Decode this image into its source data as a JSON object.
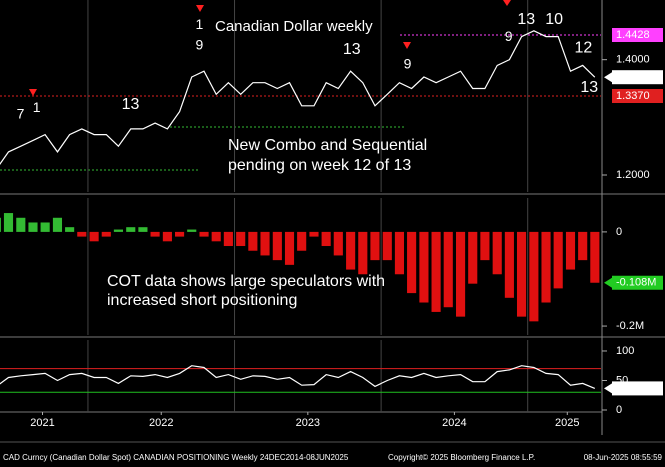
{
  "chart_data": [
    {
      "type": "line",
      "title": "Canadian Dollar weekly",
      "annotation": [
        "New Combo and Sequential",
        "pending on week 12 of 13"
      ],
      "color": "#ffffff",
      "x": [
        2021.375,
        2021.458,
        2021.542,
        2021.625,
        2021.708,
        2021.792,
        2021.875,
        2021.958,
        2022.042,
        2022.125,
        2022.208,
        2022.292,
        2022.375,
        2022.458,
        2022.542,
        2022.625,
        2022.708,
        2022.792,
        2022.875,
        2022.958,
        2023.042,
        2023.125,
        2023.208,
        2023.292,
        2023.375,
        2023.458,
        2023.542,
        2023.625,
        2023.708,
        2023.792,
        2023.875,
        2023.958,
        2024.042,
        2024.125,
        2024.208,
        2024.292,
        2024.375,
        2024.458,
        2024.542,
        2024.625,
        2024.708,
        2024.792,
        2024.875,
        2024.958,
        2025.042,
        2025.125,
        2025.208,
        2025.292,
        2025.375,
        2025.458
      ],
      "values": [
        1.21,
        1.24,
        1.25,
        1.26,
        1.27,
        1.24,
        1.27,
        1.28,
        1.27,
        1.27,
        1.25,
        1.28,
        1.28,
        1.29,
        1.28,
        1.31,
        1.37,
        1.38,
        1.34,
        1.36,
        1.34,
        1.36,
        1.36,
        1.35,
        1.36,
        1.32,
        1.32,
        1.36,
        1.35,
        1.38,
        1.36,
        1.32,
        1.34,
        1.36,
        1.35,
        1.37,
        1.36,
        1.37,
        1.38,
        1.35,
        1.35,
        1.39,
        1.4,
        1.44,
        1.45,
        1.44,
        1.44,
        1.38,
        1.39,
        1.3696
      ],
      "xlim": [
        2021.4,
        2025.5
      ],
      "ylim": [
        1.1705,
        1.5035
      ],
      "yticks": [
        {
          "value": 1.4,
          "label": "1.4000"
        },
        {
          "value": 1.2,
          "label": "1.2000"
        }
      ],
      "xgrid": [
        2022,
        2023,
        2024,
        2025
      ],
      "levels": [
        {
          "value": 1.4428,
          "color": "#ff40ff",
          "text_color": "#000000"
        },
        {
          "value": 1.337,
          "label": "1.3370",
          "color": "#e02020",
          "text_color": "#ffffff"
        }
      ],
      "current": {
        "value": 1.3696,
        "color": "#ffffff",
        "text_color": "#000000"
      },
      "demark": [
        {
          "text": "7",
          "x": 2021.54,
          "y": 1.304,
          "color": "#33dd33"
        },
        {
          "text": "1",
          "x": 2021.65,
          "y": 1.316,
          "color": "#ff3030"
        },
        {
          "text": "13",
          "x": 2022.29,
          "y": 1.322,
          "color": "#ff40ff"
        },
        {
          "text": "9",
          "x": 2022.76,
          "y": 1.424,
          "color": "#33dd33"
        },
        {
          "text": "1",
          "x": 2022.76,
          "y": 1.46,
          "color": "#ff3030"
        },
        {
          "text": "13",
          "x": 2023.8,
          "y": 1.417,
          "color": "#ff3030"
        },
        {
          "text": "9",
          "x": 2024.18,
          "y": 1.391,
          "color": "#33dd33"
        },
        {
          "text": "9",
          "x": 2024.87,
          "y": 1.439,
          "color": "#33dd33"
        },
        {
          "text": "13",
          "x": 2024.99,
          "y": 1.469,
          "color": "#ff40ff"
        },
        {
          "text": "10",
          "x": 2025.18,
          "y": 1.469,
          "color": "#ff3030"
        },
        {
          "text": "12",
          "x": 2025.38,
          "y": 1.42,
          "color": "#ff3030"
        },
        {
          "text": "13",
          "x": 2025.42,
          "y": 1.351,
          "color": "#33dd33"
        }
      ]
    },
    {
      "type": "bar",
      "annotation": [
        "COT data shows large speculators with",
        "increased short positioning"
      ],
      "positive_color": "#33bb33",
      "negative_color": "#e01010",
      "x": [
        2021.375,
        2021.458,
        2021.542,
        2021.625,
        2021.708,
        2021.792,
        2021.875,
        2021.958,
        2022.042,
        2022.125,
        2022.208,
        2022.292,
        2022.375,
        2022.458,
        2022.542,
        2022.625,
        2022.708,
        2022.792,
        2022.875,
        2022.958,
        2023.042,
        2023.125,
        2023.208,
        2023.292,
        2023.375,
        2023.458,
        2023.542,
        2023.625,
        2023.708,
        2023.792,
        2023.875,
        2023.958,
        2024.042,
        2024.125,
        2024.208,
        2024.292,
        2024.375,
        2024.458,
        2024.542,
        2024.625,
        2024.708,
        2024.792,
        2024.875,
        2024.958,
        2025.042,
        2025.125,
        2025.208,
        2025.292,
        2025.375,
        2025.458
      ],
      "values": [
        0.03,
        0.04,
        0.03,
        0.02,
        0.02,
        0.03,
        0.01,
        -0.01,
        -0.02,
        -0.01,
        0.005,
        0.01,
        0.01,
        -0.01,
        -0.02,
        -0.01,
        0.005,
        -0.01,
        -0.02,
        -0.03,
        -0.03,
        -0.04,
        -0.05,
        -0.06,
        -0.07,
        -0.04,
        -0.01,
        -0.03,
        -0.05,
        -0.08,
        -0.09,
        -0.06,
        -0.06,
        -0.09,
        -0.13,
        -0.15,
        -0.17,
        -0.16,
        -0.18,
        -0.11,
        -0.06,
        -0.09,
        -0.14,
        -0.18,
        -0.19,
        -0.15,
        -0.12,
        -0.08,
        -0.06,
        -0.108
      ],
      "xlim": [
        2021.4,
        2025.5
      ],
      "ylim": [
        -0.219,
        0.072
      ],
      "yticks": [
        0,
        {
          "value": -0.2,
          "label": "-0.2M"
        }
      ],
      "xgrid": [
        2022,
        2023,
        2024,
        2025
      ],
      "current": {
        "value": -0.108,
        "label": "-0.108M",
        "color": "#22cc22",
        "text_color": "#000000"
      }
    },
    {
      "type": "line",
      "color": "#ffffff",
      "x": [
        2021.375,
        2021.458,
        2021.542,
        2021.625,
        2021.708,
        2021.792,
        2021.875,
        2021.958,
        2022.042,
        2022.125,
        2022.208,
        2022.292,
        2022.375,
        2022.458,
        2022.542,
        2022.625,
        2022.708,
        2022.792,
        2022.875,
        2022.958,
        2023.042,
        2023.125,
        2023.208,
        2023.292,
        2023.375,
        2023.458,
        2023.542,
        2023.625,
        2023.708,
        2023.792,
        2023.875,
        2023.958,
        2024.042,
        2024.125,
        2024.208,
        2024.292,
        2024.375,
        2024.458,
        2024.542,
        2024.625,
        2024.708,
        2024.792,
        2024.875,
        2024.958,
        2025.042,
        2025.125,
        2025.208,
        2025.292,
        2025.375,
        2025.458
      ],
      "values": [
        40,
        55,
        58,
        60,
        62,
        50,
        60,
        62,
        55,
        55,
        45,
        58,
        57,
        60,
        55,
        62,
        75,
        72,
        55,
        60,
        52,
        58,
        57,
        52,
        55,
        42,
        43,
        60,
        55,
        65,
        55,
        40,
        50,
        58,
        55,
        62,
        55,
        58,
        60,
        48,
        48,
        65,
        68,
        75,
        72,
        62,
        60,
        42,
        45,
        36.578
      ],
      "xlim": [
        2021.4,
        2025.5
      ],
      "ylim": [
        -3.4,
        118.6
      ],
      "yticks": [
        100,
        50,
        0
      ],
      "xgrid": [
        2022,
        2023,
        2024,
        2025
      ],
      "ref_lines": [
        {
          "value": 70,
          "color": "#e02020"
        },
        {
          "value": 30,
          "color": "#20c020"
        }
      ],
      "current": {
        "value": 36.578,
        "color": "#ffffff",
        "text_color": "#000000"
      },
      "xticks": [
        {
          "value": 2021.69,
          "label": "2021"
        },
        {
          "value": 2022.5,
          "label": "2022"
        },
        {
          "value": 2023.5,
          "label": "2023"
        },
        {
          "value": 2024.5,
          "label": "2024"
        },
        {
          "value": 2025.27,
          "label": "2025"
        }
      ]
    }
  ],
  "footer": {
    "left": "CAD Curncy (Canadian Dollar Spot) CANADIAN POSITIONING  Weekly 24DEC2014-08JUN2025",
    "center": "Copyright© 2025 Bloomberg Finance L.P.",
    "right": "08-Jun-2025 08:55:59"
  }
}
